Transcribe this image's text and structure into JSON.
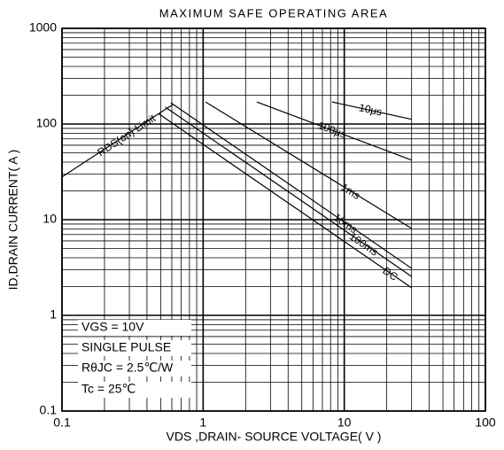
{
  "chart_data": {
    "type": "line",
    "title": "MAXIMUM SAFE OPERATING AREA",
    "xlabel": "VDS ,DRAIN- SOURCE VOLTAGE( V )",
    "ylabel": "ID,DRAIN CURRENT( A )",
    "xscale": "log",
    "yscale": "log",
    "grid": true,
    "xlim": [
      0.1,
      100
    ],
    "ylim": [
      0.1,
      1000
    ],
    "xticks": [
      0.1,
      1,
      10,
      100
    ],
    "yticks": [
      0.1,
      1,
      10,
      100,
      1000
    ],
    "series": [
      {
        "name": "RDS(on) Limit",
        "color": "#000000",
        "x": [
          0.1,
          0.61
        ],
        "values": [
          28,
          160
        ]
      },
      {
        "name": "DC",
        "color": "#000000",
        "x": [
          0.48,
          30
        ],
        "values": [
          129,
          1.94
        ]
      },
      {
        "name": "100ms",
        "color": "#000000",
        "x": [
          0.54,
          30
        ],
        "values": [
          150,
          2.55
        ]
      },
      {
        "name": "10ms",
        "color": "#000000",
        "x": [
          0.59,
          30
        ],
        "values": [
          167,
          3.1
        ]
      },
      {
        "name": "1ms",
        "color": "#000000",
        "x": [
          1.04,
          30
        ],
        "values": [
          170,
          8.1
        ]
      },
      {
        "name": "100μs",
        "color": "#000000",
        "x": [
          2.4,
          30
        ],
        "values": [
          170,
          42
        ]
      },
      {
        "name": "10μs",
        "color": "#000000",
        "x": [
          8.2,
          30
        ],
        "values": [
          170,
          112
        ]
      }
    ],
    "annotations": [
      "VGS = 10V",
      "SINGLE PULSE",
      "RθJC = 2.5℃/W",
      "Tc = 25℃"
    ]
  }
}
